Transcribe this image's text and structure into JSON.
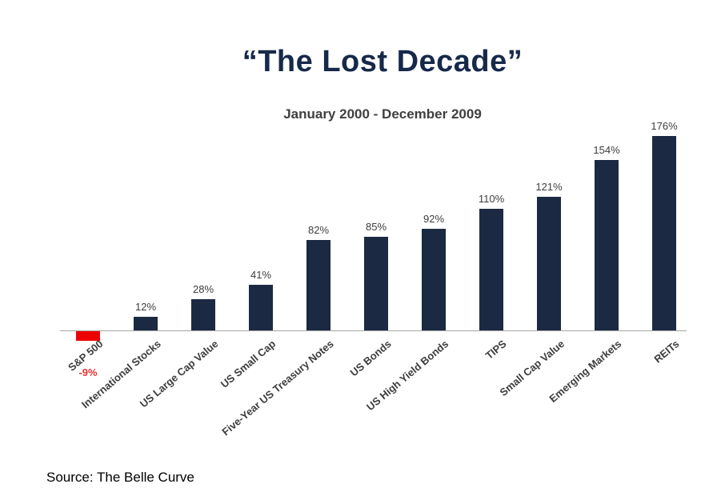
{
  "chart_data": {
    "type": "bar",
    "title": "“The Lost Decade”",
    "subtitle": "January 2000 - December 2009",
    "categories": [
      "S&P 500",
      "International Stocks",
      "US Large Cap Value",
      "US Small Cap",
      "Five-Year US Treasury Notes",
      "US Bonds",
      "US High Yield Bonds",
      "TIPS",
      "Small Cap Value",
      "Emerging Markets",
      "REITs"
    ],
    "values": [
      -9,
      12,
      28,
      41,
      82,
      85,
      92,
      110,
      121,
      154,
      176
    ],
    "value_labels": [
      "-9%",
      "12%",
      "28%",
      "41%",
      "82%",
      "85%",
      "92%",
      "110%",
      "121%",
      "154%",
      "176%"
    ],
    "bar_color": "#1b2942",
    "negative_bar_color": "#ee0000",
    "negative_label_color": "#e83232",
    "ylim": [
      -20,
      190
    ],
    "grid": false,
    "legend": false,
    "xlabel": "",
    "ylabel": ""
  },
  "source": {
    "text": "Source: The Belle Curve"
  }
}
